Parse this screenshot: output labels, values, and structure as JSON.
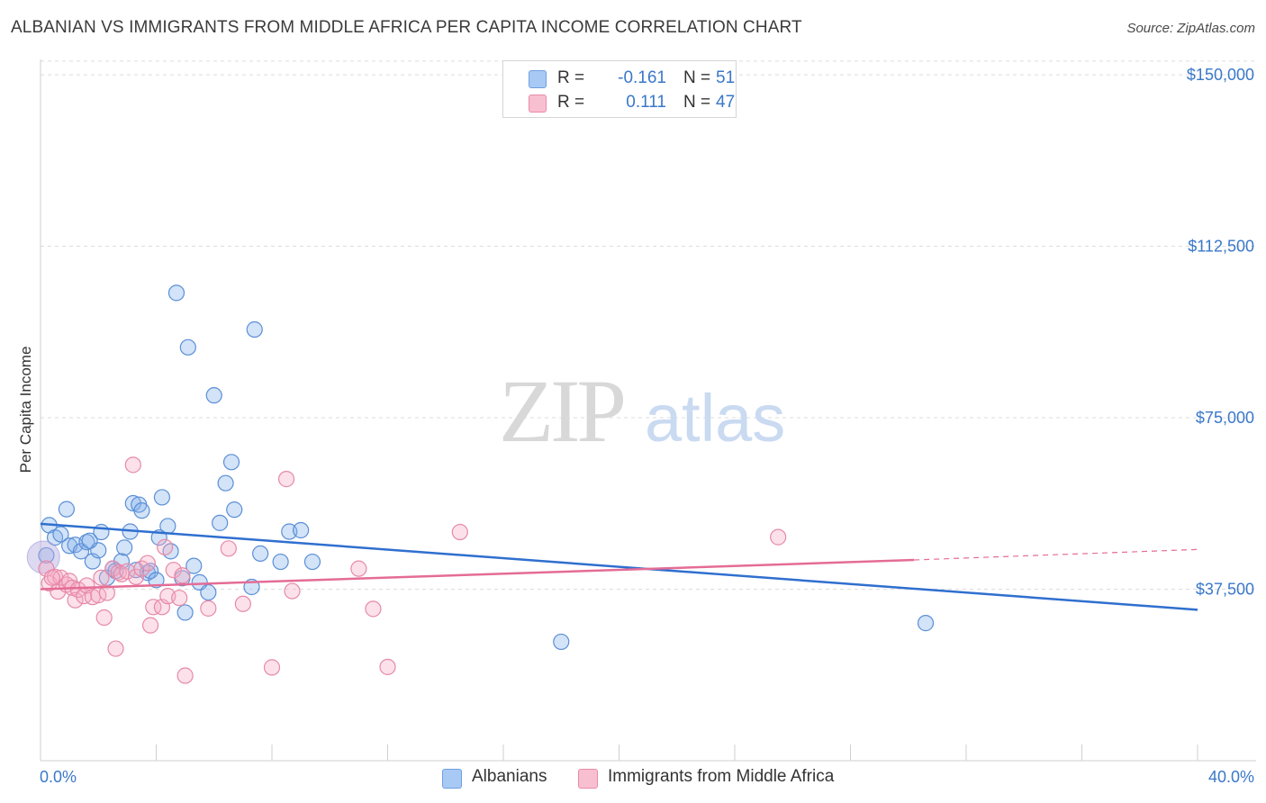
{
  "title": "ALBANIAN VS IMMIGRANTS FROM MIDDLE AFRICA PER CAPITA INCOME CORRELATION CHART",
  "source": "Source: ZipAtlas.com",
  "watermark": {
    "zip": "ZIP",
    "atlas": "atlas"
  },
  "legend": {
    "r_label": "R =",
    "n_label": "N =",
    "rows": [
      {
        "r": "-0.161",
        "n": "51",
        "color": "#a9c9f5",
        "border": "#6e9fe0"
      },
      {
        "r": "0.111",
        "n": "47",
        "color": "#f8bfd0",
        "border": "#e88aa8"
      }
    ]
  },
  "bottom_legend": [
    {
      "label": "Albanians",
      "color": "#a9c9f5",
      "border": "#6e9fe0"
    },
    {
      "label": "Immigrants from Middle Africa",
      "color": "#f8bfd0",
      "border": "#e88aa8"
    }
  ],
  "colors": {
    "blue_fill": "rgba(130,175,235,0.35)",
    "blue_stroke": "#5b8fd6",
    "blue_line": "#2f6fcf",
    "pink_fill": "rgba(246,170,195,0.35)",
    "pink_stroke": "#e58aa8",
    "pink_line": "#e46c96",
    "grid": "#dddddd",
    "tick_text": "#3a78c9"
  },
  "chart_data": {
    "type": "scatter",
    "title": "ALBANIAN VS IMMIGRANTS FROM MIDDLE AFRICA PER CAPITA INCOME CORRELATION CHART",
    "xlabel": "",
    "ylabel": "Per Capita Income",
    "xlim": [
      0,
      40
    ],
    "ylim": [
      0,
      153000
    ],
    "x_tick_labels": [
      "0.0%",
      "40.0%"
    ],
    "y_ticks": [
      37500,
      75000,
      112500,
      150000
    ],
    "y_tick_labels": [
      "$37,500",
      "$75,000",
      "$112,500",
      "$150,000"
    ],
    "series": [
      {
        "name": "Albanians",
        "r": -0.161,
        "n": 51,
        "trend": {
          "x": [
            0,
            40
          ],
          "y": [
            51800,
            33000
          ]
        },
        "points": [
          [
            0.3,
            51500
          ],
          [
            0.5,
            48800
          ],
          [
            0.7,
            49500
          ],
          [
            0.9,
            55000
          ],
          [
            1.0,
            47000
          ],
          [
            1.2,
            47200
          ],
          [
            1.4,
            45800
          ],
          [
            1.6,
            47800
          ],
          [
            1.8,
            43600
          ],
          [
            2.0,
            46000
          ],
          [
            2.1,
            50000
          ],
          [
            2.3,
            40000
          ],
          [
            2.5,
            42000
          ],
          [
            2.6,
            41500
          ],
          [
            2.8,
            43600
          ],
          [
            2.9,
            46600
          ],
          [
            3.1,
            50100
          ],
          [
            3.2,
            56300
          ],
          [
            3.4,
            56000
          ],
          [
            3.5,
            54700
          ],
          [
            3.7,
            41100
          ],
          [
            3.8,
            41500
          ],
          [
            4.0,
            39500
          ],
          [
            4.1,
            48800
          ],
          [
            4.2,
            57600
          ],
          [
            4.4,
            51300
          ],
          [
            4.5,
            45800
          ],
          [
            4.7,
            102300
          ],
          [
            4.9,
            39900
          ],
          [
            5.0,
            32400
          ],
          [
            5.1,
            90400
          ],
          [
            5.3,
            42600
          ],
          [
            5.5,
            39000
          ],
          [
            5.8,
            36800
          ],
          [
            6.0,
            79900
          ],
          [
            6.2,
            52000
          ],
          [
            6.4,
            60700
          ],
          [
            6.6,
            65300
          ],
          [
            6.7,
            54900
          ],
          [
            7.3,
            38000
          ],
          [
            7.4,
            94300
          ],
          [
            7.6,
            45300
          ],
          [
            8.3,
            43500
          ],
          [
            8.6,
            50100
          ],
          [
            9.0,
            50400
          ],
          [
            9.4,
            43500
          ],
          [
            18.0,
            26000
          ],
          [
            30.6,
            30100
          ],
          [
            3.3,
            41700
          ],
          [
            1.7,
            48100
          ],
          [
            0.2,
            44900
          ]
        ]
      },
      {
        "name": "Immigrants from Middle Africa",
        "r": 0.111,
        "n": 47,
        "trend": {
          "x": [
            0,
            30.2
          ],
          "y": [
            37500,
            43900
          ]
        },
        "trend_dashed": {
          "x": [
            30.2,
            40
          ],
          "y": [
            43900,
            46200
          ]
        },
        "points": [
          [
            0.2,
            42000
          ],
          [
            0.3,
            38800
          ],
          [
            0.5,
            40200
          ],
          [
            0.6,
            37000
          ],
          [
            0.7,
            40000
          ],
          [
            0.9,
            38500
          ],
          [
            1.0,
            39300
          ],
          [
            1.1,
            37800
          ],
          [
            1.2,
            35100
          ],
          [
            1.3,
            37400
          ],
          [
            1.5,
            36000
          ],
          [
            1.6,
            38300
          ],
          [
            1.8,
            35800
          ],
          [
            2.0,
            36200
          ],
          [
            2.1,
            40000
          ],
          [
            2.2,
            31300
          ],
          [
            2.3,
            36700
          ],
          [
            2.5,
            42000
          ],
          [
            2.6,
            24500
          ],
          [
            2.7,
            41200
          ],
          [
            2.8,
            40800
          ],
          [
            3.0,
            41400
          ],
          [
            3.2,
            64700
          ],
          [
            3.3,
            40200
          ],
          [
            3.5,
            42000
          ],
          [
            3.7,
            43200
          ],
          [
            3.8,
            29600
          ],
          [
            3.9,
            33600
          ],
          [
            4.2,
            33600
          ],
          [
            4.3,
            46700
          ],
          [
            4.4,
            36000
          ],
          [
            4.6,
            41700
          ],
          [
            4.8,
            35600
          ],
          [
            4.9,
            40500
          ],
          [
            5.0,
            18600
          ],
          [
            5.8,
            33300
          ],
          [
            6.5,
            46400
          ],
          [
            7.0,
            34300
          ],
          [
            8.0,
            20400
          ],
          [
            8.5,
            61600
          ],
          [
            8.7,
            37100
          ],
          [
            11.0,
            42000
          ],
          [
            11.5,
            33200
          ],
          [
            12.0,
            20500
          ],
          [
            14.5,
            50000
          ],
          [
            25.5,
            48900
          ],
          [
            0.4,
            40000
          ]
        ]
      }
    ]
  }
}
